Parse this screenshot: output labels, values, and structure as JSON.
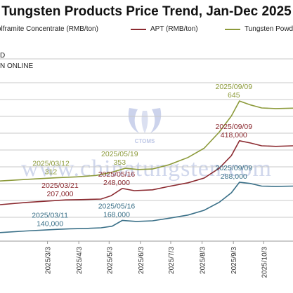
{
  "chart_data": {
    "type": "line",
    "title": "Tungsten Products Price Trend, Jan-Dec 2025",
    "units_lines": [
      "D",
      "N ONLINE"
    ],
    "x_start": "2025-01-15",
    "x_end": "2025-11-01",
    "ylim": [
      0,
      1
    ],
    "grid": "horizontal",
    "x_ticks": [
      "2025/3/3",
      "2025/4/3",
      "2025/5/3",
      "2025/6/3",
      "2025/7/3",
      "2025/8/3",
      "2025/9/3",
      "2025/10/3"
    ],
    "series": [
      {
        "name": "Wolframite Concentrate (RMB/ton)",
        "legend": "olframite Concentrate (RMB/ton)",
        "color": "#3a7088",
        "points": [
          [
            "2025-01-15",
            130000
          ],
          [
            "2025-02-10",
            135000
          ],
          [
            "2025-03-11",
            140000
          ],
          [
            "2025-03-25",
            142000
          ],
          [
            "2025-04-10",
            143000
          ],
          [
            "2025-04-25",
            145000
          ],
          [
            "2025-05-06",
            150000
          ],
          [
            "2025-05-16",
            168000
          ],
          [
            "2025-05-30",
            165000
          ],
          [
            "2025-06-15",
            167000
          ],
          [
            "2025-07-01",
            175000
          ],
          [
            "2025-07-20",
            185000
          ],
          [
            "2025-08-05",
            200000
          ],
          [
            "2025-08-20",
            225000
          ],
          [
            "2025-09-01",
            255000
          ],
          [
            "2025-09-09",
            288000
          ],
          [
            "2025-09-20",
            284000
          ],
          [
            "2025-10-01",
            276000
          ],
          [
            "2025-10-15",
            275000
          ],
          [
            "2025-11-01",
            276000
          ]
        ]
      },
      {
        "name": "APT (RMB/ton)",
        "legend": "APT (RMB/ton)",
        "color": "#8b2a30",
        "points": [
          [
            "2025-01-15",
            190000
          ],
          [
            "2025-02-10",
            198000
          ],
          [
            "2025-03-21",
            207000
          ],
          [
            "2025-04-05",
            208000
          ],
          [
            "2025-04-25",
            210000
          ],
          [
            "2025-05-05",
            222000
          ],
          [
            "2025-05-16",
            248000
          ],
          [
            "2025-05-28",
            240000
          ],
          [
            "2025-06-15",
            243000
          ],
          [
            "2025-07-01",
            255000
          ],
          [
            "2025-07-20",
            268000
          ],
          [
            "2025-08-05",
            285000
          ],
          [
            "2025-08-20",
            320000
          ],
          [
            "2025-09-01",
            365000
          ],
          [
            "2025-09-09",
            418000
          ],
          [
            "2025-09-20",
            410000
          ],
          [
            "2025-10-01",
            400000
          ],
          [
            "2025-10-15",
            398000
          ],
          [
            "2025-11-01",
            400000
          ]
        ]
      },
      {
        "name": "Tungsten Powder (RMB/kg)",
        "legend": "Tungsten Powde",
        "color": "#8c9a3a",
        "points": [
          [
            "2025-01-15",
            298
          ],
          [
            "2025-02-10",
            305
          ],
          [
            "2025-03-12",
            312
          ],
          [
            "2025-04-01",
            316
          ],
          [
            "2025-04-20",
            322
          ],
          [
            "2025-05-05",
            335
          ],
          [
            "2025-05-19",
            353
          ],
          [
            "2025-06-01",
            348
          ],
          [
            "2025-06-15",
            350
          ],
          [
            "2025-07-01",
            368
          ],
          [
            "2025-07-20",
            400
          ],
          [
            "2025-08-05",
            440
          ],
          [
            "2025-08-20",
            510
          ],
          [
            "2025-09-01",
            580
          ],
          [
            "2025-09-09",
            645
          ],
          [
            "2025-09-20",
            628
          ],
          [
            "2025-10-01",
            615
          ],
          [
            "2025-10-15",
            612
          ],
          [
            "2025-11-01",
            614
          ]
        ]
      }
    ],
    "annotations": [
      {
        "series": 2,
        "date": "2025-03-12",
        "label_date": "2025/03/12",
        "label_value": "312"
      },
      {
        "series": 2,
        "date": "2025-05-19",
        "label_date": "2025/05/19",
        "label_value": "353"
      },
      {
        "series": 2,
        "date": "2025-09-09",
        "label_date": "2025/09/09",
        "label_value": "645"
      },
      {
        "series": 1,
        "date": "2025-03-21",
        "label_date": "2025/03/21",
        "label_value": "207,000"
      },
      {
        "series": 1,
        "date": "2025-05-16",
        "label_date": "2025/05/16",
        "label_value": "248,000"
      },
      {
        "series": 1,
        "date": "2025-09-09",
        "label_date": "2025/09/09",
        "label_value": "418,000"
      },
      {
        "series": 0,
        "date": "2025-03-11",
        "label_date": "2025/03/11",
        "label_value": "140,000"
      },
      {
        "series": 0,
        "date": "2025-05-16",
        "label_date": "2025/05/16",
        "label_value": "168,000"
      },
      {
        "series": 0,
        "date": "2025-09-09",
        "label_date": "2025/09/09",
        "label_value": "288,000"
      }
    ]
  },
  "watermark": {
    "text": "www.chinatungsten.com",
    "logo_text": "CTOMS",
    "color": "#7f94c8"
  }
}
